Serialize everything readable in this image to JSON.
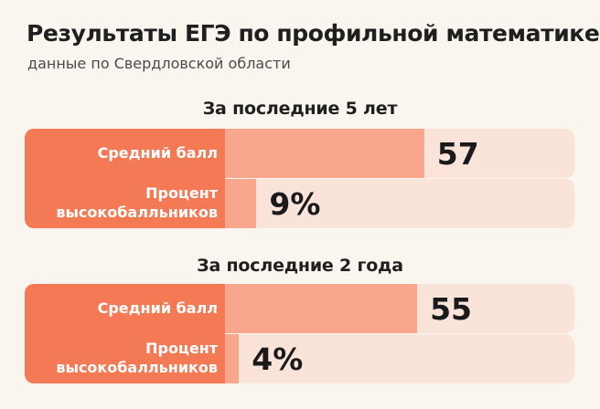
{
  "header": {
    "title": "Результаты ЕГЭ по профильной математике",
    "subtitle": "данные по Свердловской области"
  },
  "colors": {
    "label_background": "#f47a55",
    "bar_fill": "#f8a68c",
    "bar_track": "#fae4da",
    "page_background": "#fbf5ef"
  },
  "chart_data": {
    "type": "bar",
    "orientation": "horizontal",
    "title": "Результаты ЕГЭ по профильной математике",
    "subtitle": "данные по Свердловской области",
    "panels": [
      {
        "title": "За последние 5 лет",
        "rows": [
          {
            "label": "Средний балл",
            "value": 57,
            "display": "57",
            "max": 100
          },
          {
            "label": "Процент\nвысокобалльников",
            "value": 9,
            "display": "9%",
            "max": 100
          }
        ]
      },
      {
        "title": "За последние 2 года",
        "rows": [
          {
            "label": "Средний балл",
            "value": 55,
            "display": "55",
            "max": 100
          },
          {
            "label": "Процент\nвысокобалльников",
            "value": 4,
            "display": "4%",
            "max": 100
          }
        ]
      }
    ]
  }
}
